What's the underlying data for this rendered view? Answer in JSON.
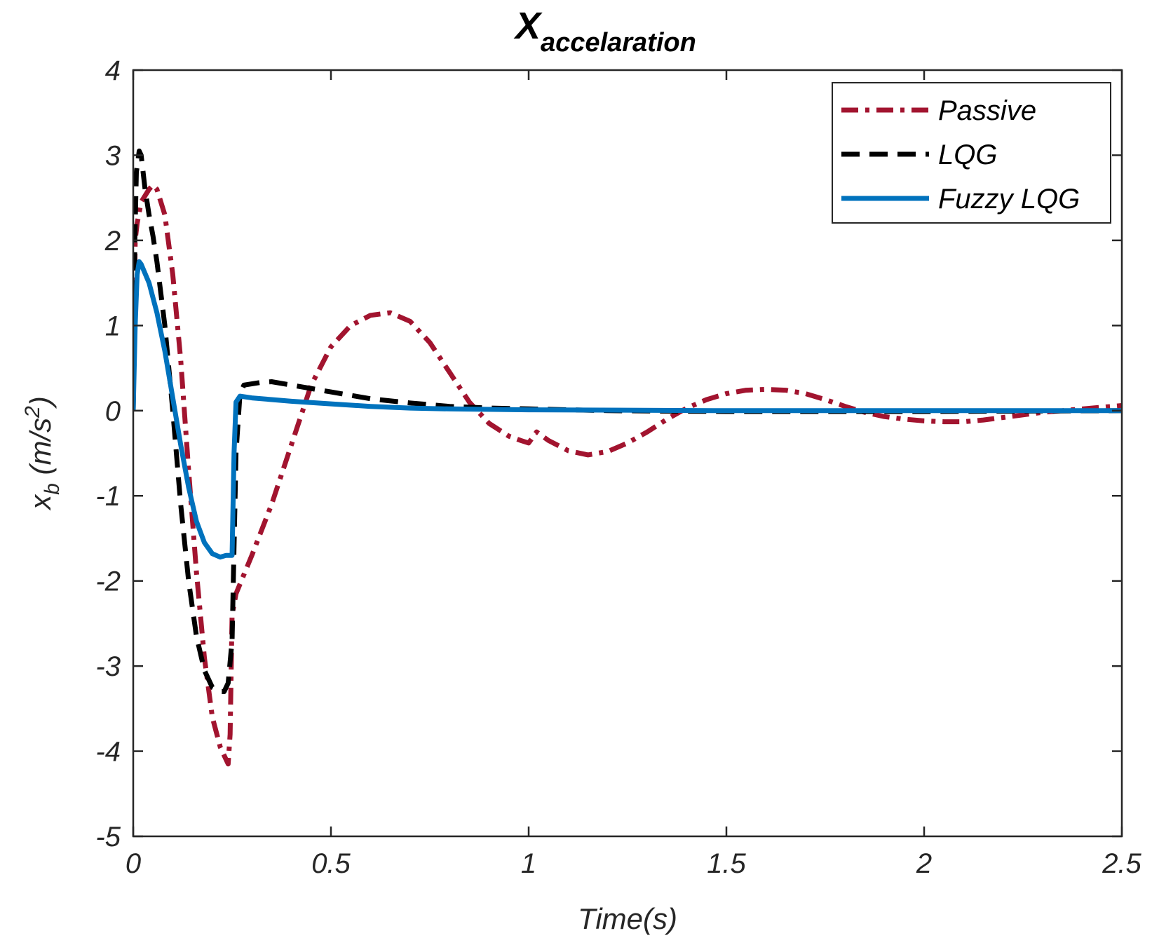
{
  "chart_data": {
    "type": "line",
    "title": "X",
    "title_subscript": "accelaration",
    "xlabel": "Time(s)",
    "ylabel": {
      "main": "x",
      "subscript": "b",
      "unit_prefix": " (m/s",
      "unit_superscript": "2",
      "unit_suffix": ")"
    },
    "xlim": [
      0,
      2.5
    ],
    "ylim": [
      -5,
      4
    ],
    "xticks": [
      0,
      0.5,
      1,
      1.5,
      2,
      2.5
    ],
    "xtick_labels": [
      "0",
      "0.5",
      "1",
      "1.5",
      "2",
      "2.5"
    ],
    "yticks": [
      -5,
      -4,
      -3,
      -2,
      -1,
      0,
      1,
      2,
      3,
      4
    ],
    "ytick_labels": [
      "-5",
      "-4",
      "-3",
      "-2",
      "-1",
      "0",
      "1",
      "2",
      "3",
      "4"
    ],
    "grid": false,
    "legend_position": "top-right",
    "series": [
      {
        "name": "Passive",
        "style": "dash-dot",
        "color": "#A2142F",
        "points": [
          [
            0,
            0
          ],
          [
            0.005,
            2.0
          ],
          [
            0.01,
            2.2
          ],
          [
            0.02,
            2.45
          ],
          [
            0.04,
            2.6
          ],
          [
            0.05,
            2.65
          ],
          [
            0.06,
            2.6
          ],
          [
            0.08,
            2.3
          ],
          [
            0.1,
            1.6
          ],
          [
            0.12,
            0.6
          ],
          [
            0.14,
            -0.7
          ],
          [
            0.16,
            -1.9
          ],
          [
            0.18,
            -2.9
          ],
          [
            0.2,
            -3.6
          ],
          [
            0.22,
            -3.95
          ],
          [
            0.23,
            -4.05
          ],
          [
            0.24,
            -4.15
          ],
          [
            0.245,
            -3.8
          ],
          [
            0.25,
            -2.4
          ],
          [
            0.26,
            -2.15
          ],
          [
            0.3,
            -1.7
          ],
          [
            0.35,
            -1.1
          ],
          [
            0.4,
            -0.4
          ],
          [
            0.45,
            0.3
          ],
          [
            0.5,
            0.75
          ],
          [
            0.55,
            1.0
          ],
          [
            0.6,
            1.12
          ],
          [
            0.65,
            1.15
          ],
          [
            0.7,
            1.05
          ],
          [
            0.75,
            0.8
          ],
          [
            0.8,
            0.45
          ],
          [
            0.85,
            0.1
          ],
          [
            0.9,
            -0.15
          ],
          [
            0.95,
            -0.3
          ],
          [
            0.98,
            -0.35
          ],
          [
            1.0,
            -0.38
          ],
          [
            1.02,
            -0.25
          ],
          [
            1.05,
            -0.35
          ],
          [
            1.1,
            -0.47
          ],
          [
            1.15,
            -0.52
          ],
          [
            1.2,
            -0.48
          ],
          [
            1.25,
            -0.38
          ],
          [
            1.3,
            -0.25
          ],
          [
            1.35,
            -0.1
          ],
          [
            1.4,
            0.03
          ],
          [
            1.45,
            0.13
          ],
          [
            1.5,
            0.2
          ],
          [
            1.55,
            0.24
          ],
          [
            1.6,
            0.25
          ],
          [
            1.65,
            0.24
          ],
          [
            1.7,
            0.2
          ],
          [
            1.75,
            0.13
          ],
          [
            1.8,
            0.05
          ],
          [
            1.85,
            -0.02
          ],
          [
            1.9,
            -0.07
          ],
          [
            1.95,
            -0.1
          ],
          [
            2.0,
            -0.12
          ],
          [
            2.05,
            -0.13
          ],
          [
            2.1,
            -0.13
          ],
          [
            2.15,
            -0.11
          ],
          [
            2.2,
            -0.08
          ],
          [
            2.25,
            -0.05
          ],
          [
            2.3,
            -0.02
          ],
          [
            2.35,
            0.0
          ],
          [
            2.4,
            0.02
          ],
          [
            2.45,
            0.04
          ],
          [
            2.5,
            0.06
          ]
        ]
      },
      {
        "name": "LQG",
        "style": "dash",
        "color": "#000000",
        "points": [
          [
            0,
            0
          ],
          [
            0.004,
            2.0
          ],
          [
            0.008,
            2.8
          ],
          [
            0.015,
            3.05
          ],
          [
            0.02,
            3.0
          ],
          [
            0.03,
            2.6
          ],
          [
            0.04,
            2.3
          ],
          [
            0.05,
            2.05
          ],
          [
            0.06,
            1.75
          ],
          [
            0.08,
            1.0
          ],
          [
            0.1,
            0.0
          ],
          [
            0.12,
            -1.1
          ],
          [
            0.14,
            -2.0
          ],
          [
            0.16,
            -2.65
          ],
          [
            0.18,
            -3.05
          ],
          [
            0.2,
            -3.25
          ],
          [
            0.22,
            -3.3
          ],
          [
            0.23,
            -3.3
          ],
          [
            0.24,
            -3.2
          ],
          [
            0.25,
            -2.7
          ],
          [
            0.26,
            -0.5
          ],
          [
            0.27,
            0.2
          ],
          [
            0.28,
            0.3
          ],
          [
            0.32,
            0.33
          ],
          [
            0.35,
            0.34
          ],
          [
            0.4,
            0.3
          ],
          [
            0.5,
            0.22
          ],
          [
            0.6,
            0.14
          ],
          [
            0.7,
            0.09
          ],
          [
            0.8,
            0.05
          ],
          [
            0.9,
            0.03
          ],
          [
            1.0,
            0.02
          ],
          [
            1.2,
            0.0
          ],
          [
            1.5,
            -0.01
          ],
          [
            2.0,
            -0.01
          ],
          [
            2.5,
            0.0
          ]
        ]
      },
      {
        "name": "Fuzzy LQG",
        "style": "solid",
        "color": "#0072BD",
        "points": [
          [
            0,
            0
          ],
          [
            0.005,
            1.0
          ],
          [
            0.01,
            1.6
          ],
          [
            0.015,
            1.75
          ],
          [
            0.02,
            1.72
          ],
          [
            0.04,
            1.5
          ],
          [
            0.06,
            1.15
          ],
          [
            0.08,
            0.7
          ],
          [
            0.1,
            0.15
          ],
          [
            0.12,
            -0.4
          ],
          [
            0.14,
            -0.9
          ],
          [
            0.16,
            -1.3
          ],
          [
            0.18,
            -1.55
          ],
          [
            0.2,
            -1.68
          ],
          [
            0.22,
            -1.72
          ],
          [
            0.235,
            -1.7
          ],
          [
            0.25,
            -1.7
          ],
          [
            0.255,
            -0.5
          ],
          [
            0.26,
            0.1
          ],
          [
            0.27,
            0.17
          ],
          [
            0.3,
            0.15
          ],
          [
            0.35,
            0.13
          ],
          [
            0.4,
            0.11
          ],
          [
            0.5,
            0.08
          ],
          [
            0.6,
            0.05
          ],
          [
            0.7,
            0.03
          ],
          [
            0.8,
            0.02
          ],
          [
            1.0,
            0.01
          ],
          [
            1.5,
            0.0
          ],
          [
            2.0,
            0.0
          ],
          [
            2.5,
            0.0
          ]
        ]
      }
    ]
  }
}
